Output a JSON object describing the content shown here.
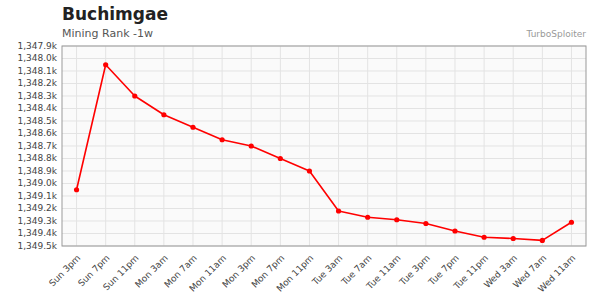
{
  "chart_data": {
    "type": "line",
    "title": "Buchimgae",
    "subtitle": "Mining Rank -1w",
    "annotations": [
      "TurboSploiter"
    ],
    "categories": [
      "Sun 3pm",
      "Sun 7pm",
      "Sun 11pm",
      "Mon 3am",
      "Mon 7am",
      "Mon 11am",
      "Mon 3pm",
      "Mon 7pm",
      "Mon 11pm",
      "Tue 3am",
      "Tue 7am",
      "Tue 11am",
      "Tue 3pm",
      "Tue 7pm",
      "Tue 11pm",
      "Wed 3am",
      "Wed 7am",
      "Wed 11am"
    ],
    "values": [
      1349050,
      1348050,
      1348300,
      1348450,
      1348550,
      1348650,
      1348700,
      1348800,
      1348900,
      1349220,
      1349270,
      1349290,
      1349320,
      1349380,
      1349430,
      1349440,
      1349455,
      1349310
    ],
    "color": "#ff0000",
    "marker": "circle",
    "ylim": [
      1349500,
      1347900
    ],
    "yticks": [
      {
        "value": 1347900,
        "label": "1,347.9k"
      },
      {
        "value": 1348000,
        "label": "1,348.0k"
      },
      {
        "value": 1348100,
        "label": "1,348.1k"
      },
      {
        "value": 1348200,
        "label": "1,348.2k"
      },
      {
        "value": 1348300,
        "label": "1,348.3k"
      },
      {
        "value": 1348400,
        "label": "1,348.4k"
      },
      {
        "value": 1348500,
        "label": "1,348.5k"
      },
      {
        "value": 1348600,
        "label": "1,348.6k"
      },
      {
        "value": 1348700,
        "label": "1,348.7k"
      },
      {
        "value": 1348800,
        "label": "1,348.8k"
      },
      {
        "value": 1348900,
        "label": "1,348.9k"
      },
      {
        "value": 1349000,
        "label": "1,349.0k"
      },
      {
        "value": 1349100,
        "label": "1,349.1k"
      },
      {
        "value": 1349200,
        "label": "1,349.2k"
      },
      {
        "value": 1349300,
        "label": "1,349.3k"
      },
      {
        "value": 1349400,
        "label": "1,349.4k"
      },
      {
        "value": 1349500,
        "label": "1,349.5k"
      }
    ],
    "grid": true
  }
}
